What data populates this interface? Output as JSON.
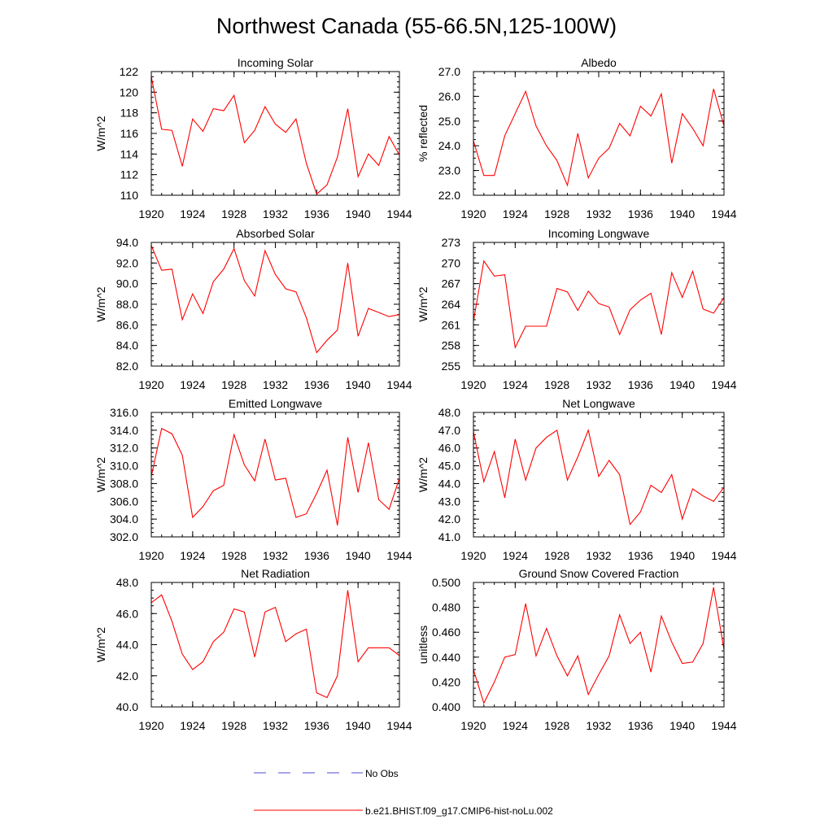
{
  "figure": {
    "title": "Northwest Canada (55-66.5N,125-100W)",
    "line_color": "#ff0000",
    "obs_color": "#4b4bcc",
    "legend": [
      {
        "label": "No Obs",
        "style": "dashed",
        "color": "#4b4bcc"
      },
      {
        "label": "b.e21.BHIST.f09_g17.CMIP6-hist-noLu.002",
        "style": "solid",
        "color": "#ff0000"
      }
    ]
  },
  "chart_data": [
    {
      "type": "line",
      "title": "Incoming Solar",
      "ylabel": "W/m^2",
      "xlim": [
        1920,
        1944
      ],
      "ylim": [
        110,
        122
      ],
      "x_ticks": [
        "1920",
        "1924",
        "1928",
        "1932",
        "1936",
        "1940",
        "1944"
      ],
      "y_ticks": [
        "110",
        "112",
        "114",
        "116",
        "118",
        "120",
        "122"
      ],
      "x": [
        1920,
        1921,
        1922,
        1923,
        1924,
        1925,
        1926,
        1927,
        1928,
        1929,
        1930,
        1931,
        1932,
        1933,
        1934,
        1935,
        1936,
        1937,
        1938,
        1939,
        1940,
        1941,
        1942,
        1943,
        1944
      ],
      "series": [
        {
          "values": [
            121.5,
            116.4,
            116.3,
            112.8,
            117.4,
            116.2,
            118.4,
            118.2,
            119.7,
            115.1,
            116.3,
            118.6,
            116.9,
            116.1,
            117.4,
            113.1,
            110.1,
            111.0,
            113.7,
            118.4,
            111.8,
            114.0,
            112.9,
            115.7,
            113.9
          ]
        }
      ]
    },
    {
      "type": "line",
      "title": "Albedo",
      "ylabel": "% reflected",
      "xlim": [
        1920,
        1944
      ],
      "ylim": [
        22.0,
        27.0
      ],
      "x_ticks": [
        "1920",
        "1924",
        "1928",
        "1932",
        "1936",
        "1940",
        "1944"
      ],
      "y_ticks": [
        "22.0",
        "23.0",
        "24.0",
        "25.0",
        "26.0",
        "27.0"
      ],
      "x": [
        1920,
        1921,
        1922,
        1923,
        1924,
        1925,
        1926,
        1927,
        1928,
        1929,
        1930,
        1931,
        1932,
        1933,
        1934,
        1935,
        1936,
        1937,
        1938,
        1939,
        1940,
        1941,
        1942,
        1943,
        1944
      ],
      "series": [
        {
          "values": [
            24.2,
            22.8,
            22.8,
            24.4,
            25.3,
            26.2,
            24.8,
            24.0,
            23.4,
            22.4,
            24.5,
            22.7,
            23.5,
            23.9,
            24.9,
            24.4,
            25.6,
            25.2,
            26.1,
            23.3,
            25.3,
            24.7,
            24.0,
            26.3,
            24.8
          ]
        }
      ]
    },
    {
      "type": "line",
      "title": "Absorbed Solar",
      "ylabel": "W/m^2",
      "xlim": [
        1920,
        1944
      ],
      "ylim": [
        82.0,
        94.0
      ],
      "x_ticks": [
        "1920",
        "1924",
        "1928",
        "1932",
        "1936",
        "1940",
        "1944"
      ],
      "y_ticks": [
        "82.0",
        "84.0",
        "86.0",
        "88.0",
        "90.0",
        "92.0",
        "94.0"
      ],
      "x": [
        1920,
        1921,
        1922,
        1923,
        1924,
        1925,
        1926,
        1927,
        1928,
        1929,
        1930,
        1931,
        1932,
        1933,
        1934,
        1935,
        1936,
        1937,
        1938,
        1939,
        1940,
        1941,
        1942,
        1943,
        1944
      ],
      "series": [
        {
          "values": [
            93.7,
            91.3,
            91.4,
            86.5,
            89.0,
            87.1,
            90.2,
            91.4,
            93.4,
            90.3,
            88.8,
            93.2,
            90.9,
            89.5,
            89.2,
            86.7,
            83.3,
            84.5,
            85.5,
            92.0,
            84.9,
            87.6,
            87.2,
            86.8,
            87.0
          ]
        }
      ]
    },
    {
      "type": "line",
      "title": "Incoming Longwave",
      "ylabel": "W/m^2",
      "xlim": [
        1920,
        1944
      ],
      "ylim": [
        255,
        273
      ],
      "x_ticks": [
        "1920",
        "1924",
        "1928",
        "1932",
        "1936",
        "1940",
        "1944"
      ],
      "y_ticks": [
        "255",
        "258",
        "261",
        "264",
        "267",
        "270",
        "273"
      ],
      "x": [
        1920,
        1921,
        1922,
        1923,
        1924,
        1925,
        1926,
        1927,
        1928,
        1929,
        1930,
        1931,
        1932,
        1933,
        1934,
        1935,
        1936,
        1937,
        1938,
        1939,
        1940,
        1941,
        1942,
        1943,
        1944
      ],
      "series": [
        {
          "values": [
            261.5,
            270.3,
            268.1,
            268.3,
            257.7,
            260.8,
            260.8,
            260.8,
            266.3,
            265.8,
            263.1,
            265.9,
            264.1,
            263.6,
            259.6,
            263.2,
            264.6,
            265.6,
            259.6,
            268.6,
            265.0,
            268.8,
            263.3,
            262.7,
            265.0
          ]
        }
      ]
    },
    {
      "type": "line",
      "title": "Emitted Longwave",
      "ylabel": "W/m^2",
      "xlim": [
        1920,
        1944
      ],
      "ylim": [
        302.0,
        316.0
      ],
      "x_ticks": [
        "1920",
        "1924",
        "1928",
        "1932",
        "1936",
        "1940",
        "1944"
      ],
      "y_ticks": [
        "302.0",
        "304.0",
        "306.0",
        "308.0",
        "310.0",
        "312.0",
        "314.0",
        "316.0"
      ],
      "x": [
        1920,
        1921,
        1922,
        1923,
        1924,
        1925,
        1926,
        1927,
        1928,
        1929,
        1930,
        1931,
        1932,
        1933,
        1934,
        1935,
        1936,
        1937,
        1938,
        1939,
        1940,
        1941,
        1942,
        1943,
        1944
      ],
      "series": [
        {
          "values": [
            308.8,
            314.2,
            313.6,
            311.2,
            304.2,
            305.4,
            307.2,
            307.8,
            313.5,
            310.1,
            308.3,
            313.0,
            308.4,
            308.6,
            304.2,
            304.6,
            306.9,
            309.5,
            303.3,
            313.2,
            307.0,
            312.6,
            306.2,
            305.1,
            308.6
          ]
        }
      ]
    },
    {
      "type": "line",
      "title": "Net Longwave",
      "ylabel": "W/m^2",
      "xlim": [
        1920,
        1944
      ],
      "ylim": [
        41.0,
        48.0
      ],
      "x_ticks": [
        "1920",
        "1924",
        "1928",
        "1932",
        "1936",
        "1940",
        "1944"
      ],
      "y_ticks": [
        "41.0",
        "42.0",
        "43.0",
        "44.0",
        "45.0",
        "46.0",
        "47.0",
        "48.0"
      ],
      "x": [
        1920,
        1921,
        1922,
        1923,
        1924,
        1925,
        1926,
        1927,
        1928,
        1929,
        1930,
        1931,
        1932,
        1933,
        1934,
        1935,
        1936,
        1937,
        1938,
        1939,
        1940,
        1941,
        1942,
        1943,
        1944
      ],
      "series": [
        {
          "values": [
            46.9,
            44.1,
            45.8,
            43.2,
            46.5,
            44.2,
            46.0,
            46.6,
            47.0,
            44.2,
            45.5,
            47.0,
            44.4,
            45.3,
            44.5,
            41.7,
            42.4,
            43.9,
            43.5,
            44.5,
            42.0,
            43.7,
            43.3,
            43.0,
            43.8
          ]
        }
      ]
    },
    {
      "type": "line",
      "title": "Net Radiation",
      "ylabel": "W/m^2",
      "xlim": [
        1920,
        1944
      ],
      "ylim": [
        40.0,
        48.0
      ],
      "x_ticks": [
        "1920",
        "1924",
        "1928",
        "1932",
        "1936",
        "1940",
        "1944"
      ],
      "y_ticks": [
        "40.0",
        "42.0",
        "44.0",
        "46.0",
        "48.0"
      ],
      "x": [
        1920,
        1921,
        1922,
        1923,
        1924,
        1925,
        1926,
        1927,
        1928,
        1929,
        1930,
        1931,
        1932,
        1933,
        1934,
        1935,
        1936,
        1937,
        1938,
        1939,
        1940,
        1941,
        1942,
        1943,
        1944
      ],
      "series": [
        {
          "values": [
            46.7,
            47.2,
            45.5,
            43.4,
            42.4,
            42.9,
            44.2,
            44.8,
            46.3,
            46.1,
            43.2,
            46.1,
            46.4,
            44.2,
            44.7,
            45.0,
            40.9,
            40.6,
            42.0,
            47.5,
            42.9,
            43.8,
            43.8,
            43.8,
            43.3
          ]
        }
      ]
    },
    {
      "type": "line",
      "title": "Ground Snow Covered Fraction",
      "ylabel": "unitless",
      "xlim": [
        1920,
        1944
      ],
      "ylim": [
        0.4,
        0.5
      ],
      "x_ticks": [
        "1920",
        "1924",
        "1928",
        "1932",
        "1936",
        "1940",
        "1944"
      ],
      "y_ticks": [
        "0.400",
        "0.420",
        "0.440",
        "0.460",
        "0.480",
        "0.500"
      ],
      "x": [
        1920,
        1921,
        1922,
        1923,
        1924,
        1925,
        1926,
        1927,
        1928,
        1929,
        1930,
        1931,
        1932,
        1933,
        1934,
        1935,
        1936,
        1937,
        1938,
        1939,
        1940,
        1941,
        1942,
        1943,
        1944
      ],
      "series": [
        {
          "values": [
            0.43,
            0.403,
            0.42,
            0.44,
            0.442,
            0.483,
            0.441,
            0.463,
            0.441,
            0.425,
            0.441,
            0.41,
            0.426,
            0.441,
            0.474,
            0.451,
            0.46,
            0.428,
            0.473,
            0.452,
            0.435,
            0.436,
            0.451,
            0.496,
            0.446
          ]
        }
      ]
    }
  ]
}
